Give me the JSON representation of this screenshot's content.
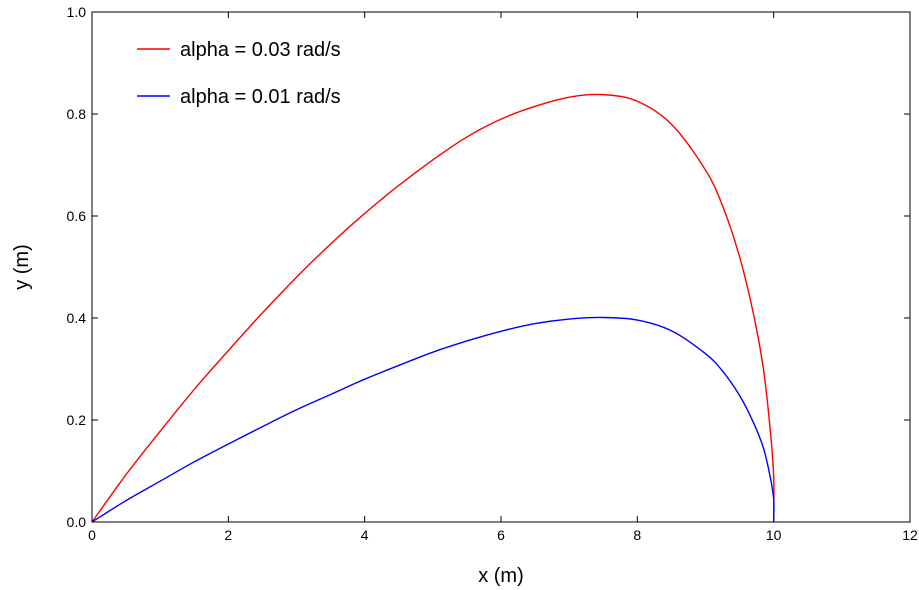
{
  "chart_data": {
    "type": "line",
    "xlabel": "x (m)",
    "ylabel": "y (m)",
    "xlim": [
      0,
      12
    ],
    "ylim": [
      0,
      1.0
    ],
    "xticks": [
      0,
      2,
      4,
      6,
      8,
      10,
      12
    ],
    "xtick_labels": [
      "0",
      "2",
      "4",
      "6",
      "8",
      "10",
      "12"
    ],
    "yticks": [
      0,
      0.2,
      0.4,
      0.6,
      0.8,
      1.0
    ],
    "ytick_labels": [
      "0.0",
      "0.2",
      "0.4",
      "0.6",
      "0.8",
      "1.0"
    ],
    "grid": false,
    "legend_position": "top-left",
    "series": [
      {
        "name": "alpha = 0.03 rad/s",
        "color": "#ff0000",
        "x": [
          0,
          0.5,
          1,
          1.5,
          2,
          2.5,
          3,
          3.5,
          4,
          4.5,
          5,
          5.5,
          6,
          6.5,
          7,
          7.5,
          8,
          8.5,
          9,
          9.25,
          9.5,
          9.7,
          9.85,
          9.95,
          10,
          10
        ],
        "y": [
          0,
          0.093,
          0.178,
          0.26,
          0.336,
          0.41,
          0.48,
          0.545,
          0.605,
          0.66,
          0.71,
          0.755,
          0.79,
          0.815,
          0.833,
          0.838,
          0.825,
          0.78,
          0.69,
          0.62,
          0.52,
          0.41,
          0.3,
          0.18,
          0.09,
          0
        ]
      },
      {
        "name": "alpha = 0.01 rad/s",
        "color": "#0000ff",
        "x": [
          0,
          0.5,
          1,
          1.5,
          2,
          2.5,
          3,
          3.5,
          4,
          4.5,
          5,
          5.5,
          6,
          6.5,
          7,
          7.5,
          8,
          8.5,
          9,
          9.25,
          9.5,
          9.7,
          9.85,
          9.95,
          10,
          10
        ],
        "y": [
          0,
          0.042,
          0.08,
          0.118,
          0.153,
          0.187,
          0.22,
          0.25,
          0.28,
          0.307,
          0.333,
          0.355,
          0.374,
          0.389,
          0.398,
          0.401,
          0.396,
          0.375,
          0.33,
          0.296,
          0.248,
          0.196,
          0.145,
          0.088,
          0.045,
          0
        ]
      }
    ]
  }
}
